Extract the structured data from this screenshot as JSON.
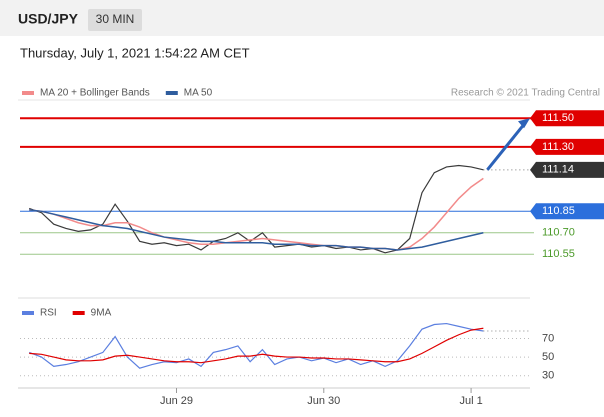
{
  "header": {
    "symbol": "USD/JPY",
    "timeframe": "30 MIN",
    "datetime": "Thursday, July 1, 2021 1:54:22 AM CET"
  },
  "chart_data": [
    {
      "type": "line",
      "credit": "Research © 2021 Trading Central",
      "x": [
        -24,
        -22,
        -20,
        -18,
        -16,
        -14,
        -12,
        -10,
        -8,
        -6,
        -4,
        -2,
        0,
        2,
        4,
        6,
        8,
        10,
        12,
        14,
        16,
        18,
        20,
        22,
        24,
        26,
        28,
        30,
        32,
        34,
        36,
        38,
        40,
        42,
        44,
        46,
        48,
        50
      ],
      "xlim": [
        -25.5,
        57.6
      ],
      "ylim": [
        110.3,
        111.6
      ],
      "price": {
        "color": "#3a3a3a",
        "values": [
          110.87,
          110.84,
          110.76,
          110.73,
          110.71,
          110.72,
          110.76,
          110.9,
          110.78,
          110.64,
          110.62,
          110.63,
          110.61,
          110.62,
          110.58,
          110.64,
          110.66,
          110.7,
          110.64,
          110.7,
          110.6,
          110.61,
          110.62,
          110.6,
          110.61,
          110.59,
          110.6,
          110.58,
          110.59,
          110.56,
          110.58,
          110.66,
          110.98,
          111.12,
          111.16,
          111.17,
          111.16,
          111.14
        ]
      },
      "series": [
        {
          "name": "MA 20 + Bollinger Bands",
          "color": "#f28b8b",
          "values": [
            110.86,
            110.85,
            110.83,
            110.8,
            110.77,
            110.75,
            110.75,
            110.77,
            110.77,
            110.74,
            110.7,
            110.67,
            110.65,
            110.63,
            110.62,
            110.62,
            110.63,
            110.64,
            110.65,
            110.66,
            110.65,
            110.64,
            110.63,
            110.62,
            110.61,
            110.61,
            110.6,
            110.6,
            110.59,
            110.59,
            110.58,
            110.6,
            110.66,
            110.74,
            110.84,
            110.94,
            111.02,
            111.08
          ]
        },
        {
          "name": "MA 50",
          "color": "#2f5d9e",
          "values": [
            110.86,
            110.85,
            110.83,
            110.81,
            110.79,
            110.77,
            110.75,
            110.74,
            110.73,
            110.71,
            110.69,
            110.67,
            110.66,
            110.65,
            110.64,
            110.64,
            110.63,
            110.63,
            110.63,
            110.63,
            110.62,
            110.62,
            110.62,
            110.61,
            110.61,
            110.61,
            110.6,
            110.6,
            110.59,
            110.59,
            110.58,
            110.59,
            110.6,
            110.62,
            110.64,
            110.66,
            110.68,
            110.7
          ]
        }
      ],
      "levels": [
        {
          "value": 111.5,
          "label": "111.50",
          "color": "#e00000",
          "style": "solid",
          "boxed": true
        },
        {
          "value": 111.3,
          "label": "111.30",
          "color": "#e00000",
          "style": "solid",
          "boxed": true
        },
        {
          "value": 111.14,
          "label": "111.14",
          "color": "#333333",
          "style": "dotted",
          "boxed": true
        },
        {
          "value": 110.85,
          "label": "110.85",
          "color": "#2c6fdc",
          "style": "solid",
          "boxed": true
        },
        {
          "value": 110.7,
          "label": "110.70",
          "color": "#4c9a2a",
          "style": "solid",
          "boxed": false
        },
        {
          "value": 110.55,
          "label": "110.55",
          "color": "#4c9a2a",
          "style": "solid",
          "boxed": false
        }
      ]
    },
    {
      "type": "line",
      "x": [
        -24,
        -22,
        -20,
        -18,
        -16,
        -14,
        -12,
        -10,
        -8,
        -6,
        -4,
        -2,
        0,
        2,
        4,
        6,
        8,
        10,
        12,
        14,
        16,
        18,
        20,
        22,
        24,
        26,
        28,
        30,
        32,
        34,
        36,
        38,
        40,
        42,
        44,
        46,
        48,
        50
      ],
      "xlim": [
        -25.5,
        57.6
      ],
      "ylim": [
        20,
        92
      ],
      "yticks": [
        70,
        50,
        30
      ],
      "xticks": [
        {
          "value": 0,
          "label": "Jun 29"
        },
        {
          "value": 24,
          "label": "Jun 30"
        },
        {
          "value": 48,
          "label": "Jul 1"
        }
      ],
      "series": [
        {
          "name": "RSI",
          "color": "#5b7fe0",
          "values": [
            55,
            50,
            40,
            42,
            45,
            50,
            55,
            72,
            50,
            38,
            42,
            45,
            44,
            48,
            40,
            55,
            58,
            62,
            45,
            58,
            42,
            48,
            50,
            46,
            49,
            44,
            48,
            42,
            46,
            40,
            46,
            62,
            80,
            85,
            86,
            83,
            80,
            78
          ]
        },
        {
          "name": "9MA",
          "color": "#e00000",
          "values": [
            54,
            53,
            50,
            47,
            46,
            46,
            47,
            51,
            52,
            50,
            48,
            46,
            45,
            45,
            44,
            46,
            48,
            51,
            51,
            53,
            51,
            50,
            50,
            49,
            49,
            48,
            48,
            47,
            46,
            45,
            45,
            48,
            54,
            61,
            68,
            74,
            79,
            81
          ]
        }
      ]
    }
  ]
}
